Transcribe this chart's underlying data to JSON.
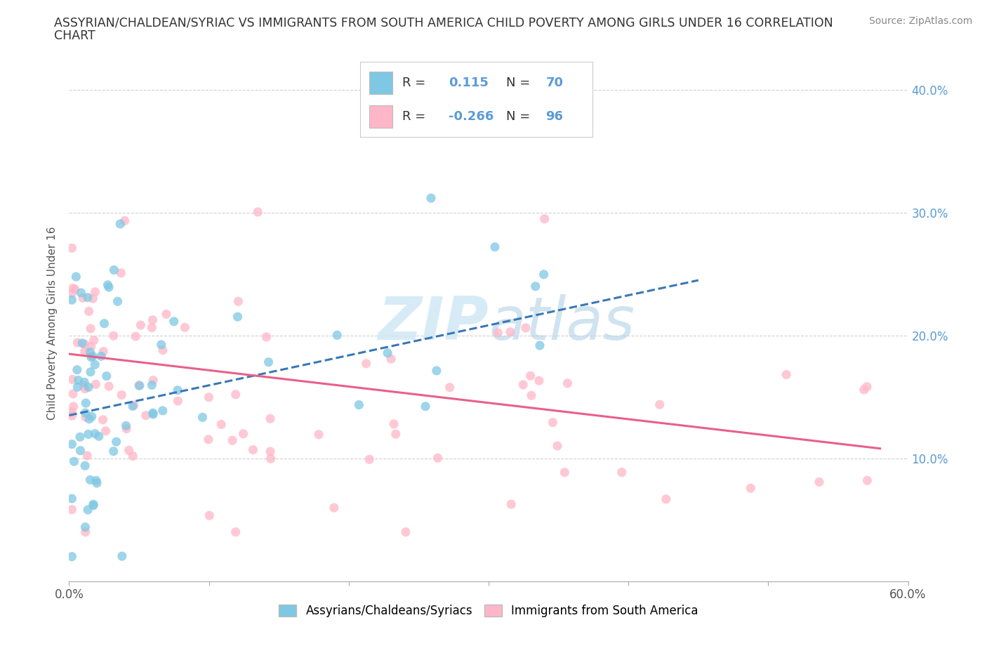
{
  "title_line1": "ASSYRIAN/CHALDEAN/SYRIAC VS IMMIGRANTS FROM SOUTH AMERICA CHILD POVERTY AMONG GIRLS UNDER 16 CORRELATION",
  "title_line2": "CHART",
  "source_text": "Source: ZipAtlas.com",
  "ylabel": "Child Poverty Among Girls Under 16",
  "xlim": [
    0.0,
    0.6
  ],
  "ylim": [
    0.0,
    0.42
  ],
  "blue_R": 0.115,
  "blue_N": 70,
  "pink_R": -0.266,
  "pink_N": 96,
  "blue_color": "#7ec8e3",
  "pink_color": "#ffb6c8",
  "blue_line_color": "#3a78b5",
  "pink_line_color": "#e8608a",
  "right_axis_color": "#5b9bd5",
  "legend_label_blue": "Assyrians/Chaldeans/Syriacs",
  "legend_label_pink": "Immigrants from South America",
  "watermark": "ZIPatlas",
  "background_color": "#ffffff",
  "blue_trend_x0": 0.0,
  "blue_trend_y0": 0.135,
  "blue_trend_x1": 0.45,
  "blue_trend_y1": 0.245,
  "pink_trend_x0": 0.0,
  "pink_trend_y0": 0.185,
  "pink_trend_x1": 0.58,
  "pink_trend_y1": 0.108
}
